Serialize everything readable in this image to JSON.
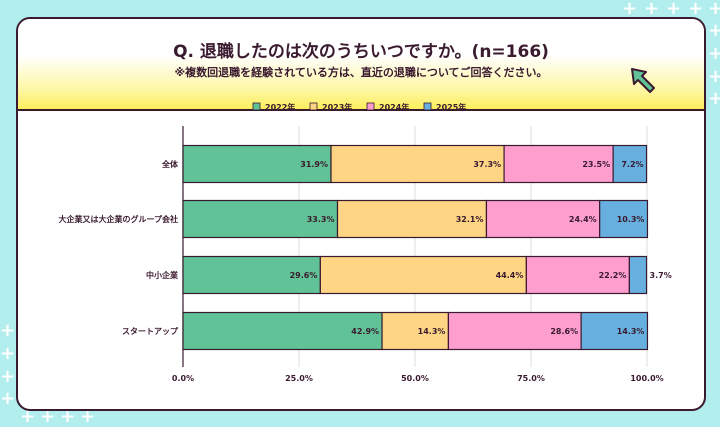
{
  "header": {
    "title": "Q. 退職したのは次のうちいつですか。(n=166)",
    "note": "※複数回退職を経験されている方は、直近の退職についてご回答ください。"
  },
  "chart_data": {
    "type": "bar",
    "orientation": "horizontal",
    "stacked": true,
    "categories": [
      "全体",
      "大企業又は大企業のグループ会社",
      "中小企業",
      "スタートアップ"
    ],
    "series": [
      {
        "name": "2022年",
        "color": "#60c296",
        "values": [
          31.9,
          33.3,
          29.6,
          42.9
        ]
      },
      {
        "name": "2023年",
        "color": "#fed584",
        "values": [
          37.3,
          32.1,
          44.4,
          14.3
        ]
      },
      {
        "name": "2024年",
        "color": "#fe9ecf",
        "values": [
          23.5,
          24.4,
          22.2,
          28.6
        ]
      },
      {
        "name": "2025年",
        "color": "#66afdf",
        "values": [
          7.2,
          10.3,
          3.7,
          14.3
        ]
      }
    ],
    "xlim": [
      0,
      100
    ],
    "xticks": [
      "0.0%",
      "25.0%",
      "50.0%",
      "75.0%",
      "100.0%"
    ],
    "legend": "top",
    "grid": true
  }
}
